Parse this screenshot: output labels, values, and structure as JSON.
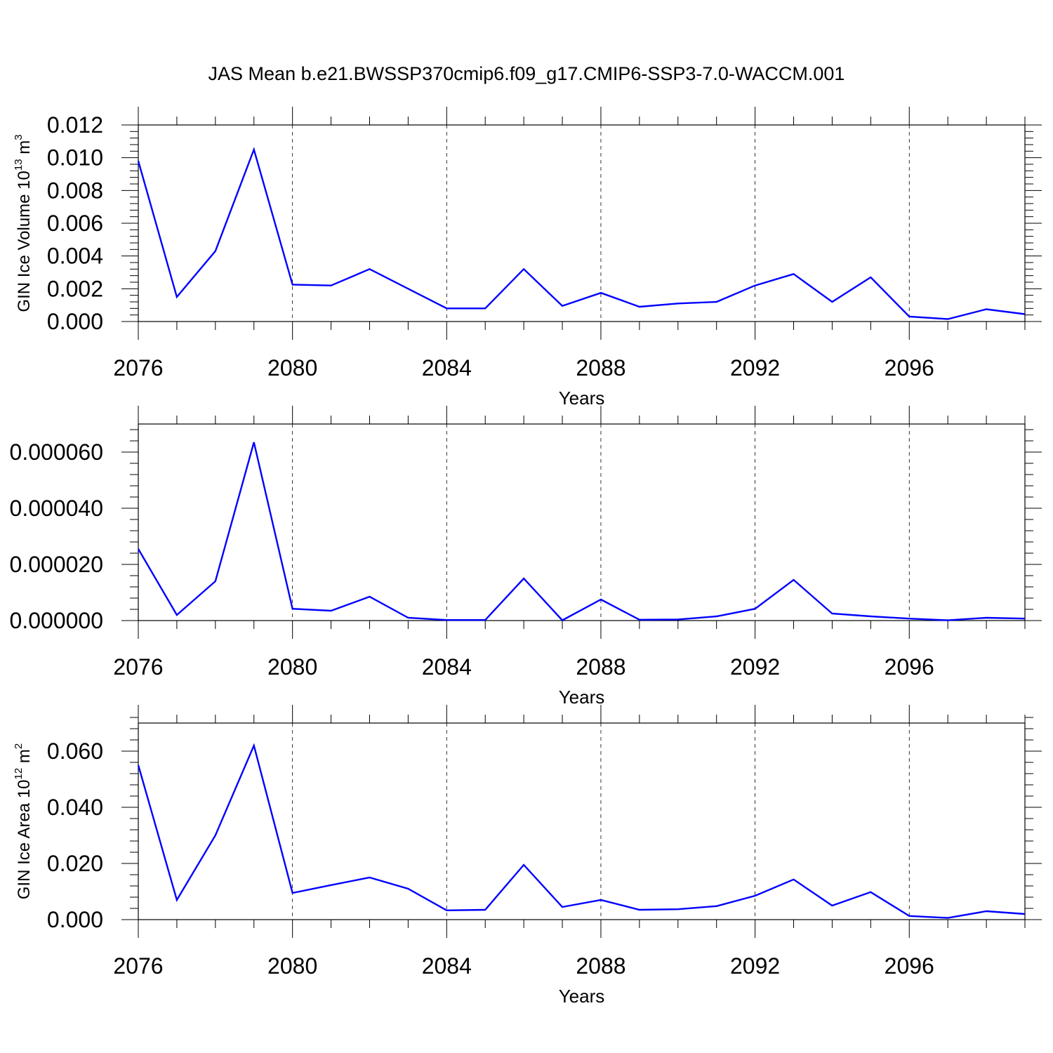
{
  "figure": {
    "title": "JAS Mean b.e21.BWSSP370cmip6.f09_g17.CMIP6-SSP3-7.0-WACCM.001",
    "line_color": "#0000ff"
  },
  "chart_data": [
    {
      "type": "line",
      "title": "",
      "xlabel": "Years",
      "ylabel": {
        "pre": "GIN Ice Volume 10",
        "sup1": "13",
        "mid": " m",
        "sup2": "3"
      },
      "xlim": [
        2076,
        2099
      ],
      "ylim": [
        0,
        0.012
      ],
      "x": [
        2076,
        2077,
        2078,
        2079,
        2080,
        2081,
        2082,
        2083,
        2084,
        2085,
        2086,
        2087,
        2088,
        2089,
        2090,
        2091,
        2092,
        2093,
        2094,
        2095,
        2096,
        2097,
        2098,
        2099
      ],
      "series": [
        {
          "values": [
            0.0098,
            0.0015,
            0.0043,
            0.0105,
            0.00225,
            0.0022,
            0.0032,
            0.002,
            0.0008,
            0.0008,
            0.0032,
            0.00095,
            0.00175,
            0.0009,
            0.0011,
            0.0012,
            0.0022,
            0.0029,
            0.0012,
            0.0027,
            0.0003,
            0.00015,
            0.00075,
            0.00045
          ]
        }
      ],
      "x_major_ticks": [
        2076,
        2080,
        2084,
        2088,
        2092,
        2096
      ],
      "x_tick_labels": [
        "2076",
        "2080",
        "2084",
        "2088",
        "2092",
        "2096"
      ],
      "y_major_ticks": [
        0,
        0.002,
        0.004,
        0.006,
        0.008,
        0.01,
        0.012
      ],
      "y_tick_labels": [
        "0.000",
        "0.002",
        "0.004",
        "0.006",
        "0.008",
        "0.010",
        "0.012"
      ],
      "grid": "vertical dashed at major x ticks"
    },
    {
      "type": "line",
      "title": "",
      "xlabel": "Years",
      "ylabel": null,
      "xlim": [
        2076,
        2099
      ],
      "ylim": [
        0,
        7e-05
      ],
      "x": [
        2076,
        2077,
        2078,
        2079,
        2080,
        2081,
        2082,
        2083,
        2084,
        2085,
        2086,
        2087,
        2088,
        2089,
        2090,
        2091,
        2092,
        2093,
        2094,
        2095,
        2096,
        2097,
        2098,
        2099
      ],
      "series": [
        {
          "values": [
            2.55e-05,
            2e-06,
            1.4e-05,
            6.35e-05,
            4.2e-06,
            3.5e-06,
            8.5e-06,
            1e-06,
            2e-07,
            2e-07,
            1.5e-05,
            1e-07,
            7.5e-06,
            3e-07,
            4e-07,
            1.5e-06,
            4.2e-06,
            1.45e-05,
            2.5e-06,
            1.5e-06,
            7e-07,
            1e-07,
            1e-06,
            7e-07
          ]
        }
      ],
      "x_major_ticks": [
        2076,
        2080,
        2084,
        2088,
        2092,
        2096
      ],
      "x_tick_labels": [
        "2076",
        "2080",
        "2084",
        "2088",
        "2092",
        "2096"
      ],
      "y_major_ticks": [
        0,
        2e-05,
        4e-05,
        6e-05
      ],
      "y_tick_labels": [
        "0.000000",
        "0.000020",
        "0.000040",
        "0.000060"
      ],
      "grid": "vertical dashed at major x ticks"
    },
    {
      "type": "line",
      "title": "",
      "xlabel": "Years",
      "ylabel": {
        "pre": "GIN Ice Area 10",
        "sup1": "12",
        "mid": " m",
        "sup2": "2"
      },
      "xlim": [
        2076,
        2099
      ],
      "ylim": [
        0,
        0.07
      ],
      "x": [
        2076,
        2077,
        2078,
        2079,
        2080,
        2081,
        2082,
        2083,
        2084,
        2085,
        2086,
        2087,
        2088,
        2089,
        2090,
        2091,
        2092,
        2093,
        2094,
        2095,
        2096,
        2097,
        2098,
        2099
      ],
      "series": [
        {
          "values": [
            0.055,
            0.007,
            0.03,
            0.062,
            0.0095,
            0.0123,
            0.015,
            0.011,
            0.0033,
            0.0035,
            0.0195,
            0.0045,
            0.007,
            0.0035,
            0.0037,
            0.0048,
            0.0085,
            0.0143,
            0.005,
            0.0098,
            0.0013,
            0.0006,
            0.003,
            0.002
          ]
        }
      ],
      "x_major_ticks": [
        2076,
        2080,
        2084,
        2088,
        2092,
        2096
      ],
      "x_tick_labels": [
        "2076",
        "2080",
        "2084",
        "2088",
        "2092",
        "2096"
      ],
      "y_major_ticks": [
        0,
        0.02,
        0.04,
        0.06
      ],
      "y_tick_labels": [
        "0.000",
        "0.020",
        "0.040",
        "0.060"
      ],
      "grid": "vertical dashed at major x ticks"
    }
  ]
}
